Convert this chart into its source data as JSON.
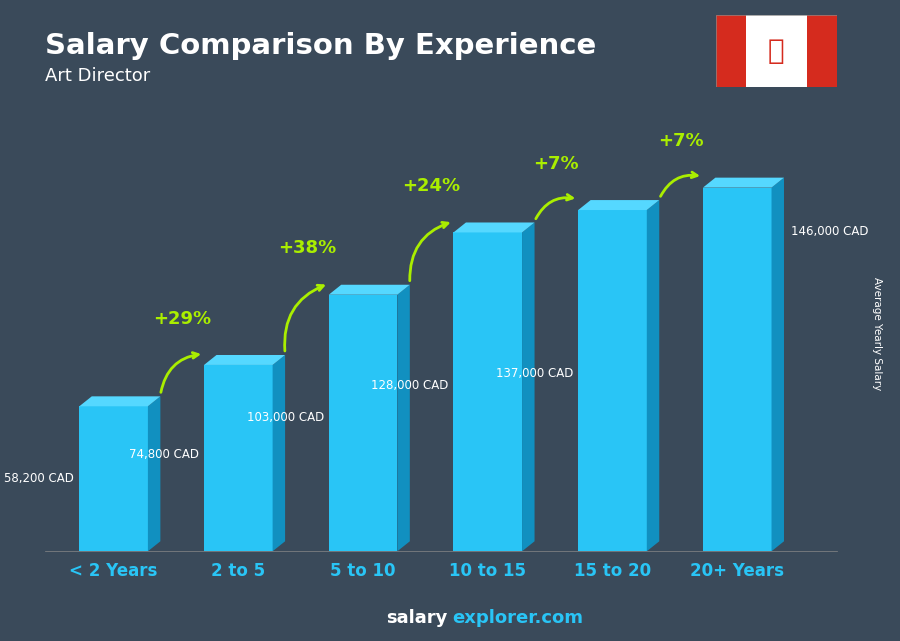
{
  "title": "Salary Comparison By Experience",
  "subtitle": "Art Director",
  "categories": [
    "< 2 Years",
    "2 to 5",
    "5 to 10",
    "10 to 15",
    "15 to 20",
    "20+ Years"
  ],
  "values": [
    58200,
    74800,
    103000,
    128000,
    137000,
    146000
  ],
  "labels": [
    "58,200 CAD",
    "74,800 CAD",
    "103,000 CAD",
    "128,000 CAD",
    "137,000 CAD",
    "146,000 CAD"
  ],
  "pct_changes": [
    "+29%",
    "+38%",
    "+24%",
    "+7%",
    "+7%"
  ],
  "bar_face_color": "#29c5f6",
  "bar_side_color": "#1190c0",
  "bar_top_color": "#55d8ff",
  "bg_color": "#3a4a5a",
  "title_color": "#ffffff",
  "label_color": "#ffffff",
  "pct_color": "#aaee00",
  "xlabel_color": "#29c5f6",
  "footer_salary_color": "#ffffff",
  "footer_explorer_color": "#29c5f6",
  "footer_bg_color": "#1a2535",
  "ylabel_text": "Average Yearly Salary",
  "ylim": [
    0,
    175000
  ],
  "figsize": [
    9.0,
    6.41
  ],
  "dpi": 100
}
